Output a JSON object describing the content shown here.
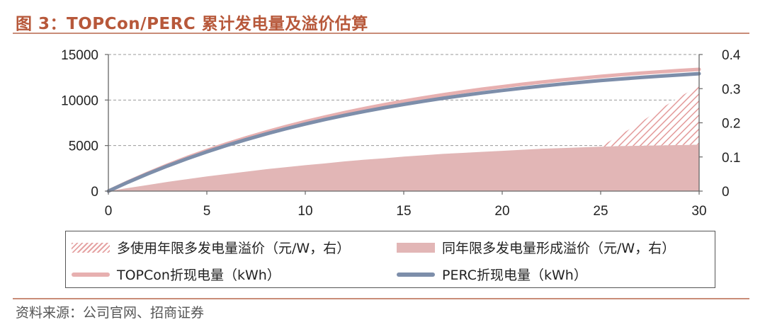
{
  "title": "图 3：TOPCon/PERC 累计发电量及溢价估算",
  "source": "资料来源：公司官网、招商证券",
  "colors": {
    "title": "#b7583a",
    "rule": "#c98c78",
    "topcon": "#e7b0b0",
    "perc": "#7d8eaa",
    "area": "#e2b6b6",
    "hatch": "#e5a3a3"
  },
  "legend": {
    "hatch_label": "多使用年限多发电量溢价（元/W，右）",
    "area_label": "同年限多发电量形成溢价（元/W，右）",
    "topcon_label": "TOPCon折现电量（kWh）",
    "perc_label": "PERC折现电量（kWh）"
  },
  "chart_data": {
    "type": "line+area",
    "xlabel": "",
    "ylabel_left": "",
    "ylabel_right": "",
    "xlim": [
      0,
      30
    ],
    "ylim_left": [
      0,
      15000
    ],
    "ylim_right": [
      0,
      0.4
    ],
    "x_ticks": [
      "0",
      "5",
      "10",
      "15",
      "20",
      "25",
      "30"
    ],
    "y_left_ticks": [
      "0",
      "5000",
      "10000",
      "15000"
    ],
    "y_right_ticks": [
      "0",
      "0.1",
      "0.2",
      "0.3",
      "0.4"
    ],
    "grid": "horizontal dashed",
    "x": [
      0,
      1,
      2,
      3,
      4,
      5,
      6,
      7,
      8,
      9,
      10,
      11,
      12,
      13,
      14,
      15,
      16,
      17,
      18,
      19,
      20,
      21,
      22,
      23,
      24,
      25,
      26,
      27,
      28,
      29,
      30
    ],
    "series": [
      {
        "name": "TOPCon折现电量（kWh）",
        "axis": "left",
        "kind": "line",
        "values": [
          0,
          1020,
          1970,
          2860,
          3690,
          4460,
          5190,
          5860,
          6490,
          7080,
          7630,
          8140,
          8620,
          9070,
          9490,
          9880,
          10240,
          10580,
          10900,
          11200,
          11470,
          11730,
          11970,
          12190,
          12400,
          12600,
          12780,
          12950,
          13100,
          13240,
          13370
        ]
      },
      {
        "name": "PERC折现电量（kWh）",
        "axis": "left",
        "kind": "line",
        "values": [
          0,
          980,
          1900,
          2760,
          3560,
          4310,
          5010,
          5660,
          6270,
          6840,
          7370,
          7860,
          8320,
          8750,
          9150,
          9520,
          9870,
          10200,
          10500,
          10790,
          11050,
          11300,
          11530,
          11750,
          11950,
          12140,
          12310,
          12470,
          12620,
          12760,
          12890
        ]
      },
      {
        "name": "同年限多发电量形成溢价（元/W，右）",
        "axis": "right",
        "kind": "area",
        "values": [
          0,
          0.009,
          0.018,
          0.027,
          0.035,
          0.043,
          0.05,
          0.057,
          0.064,
          0.07,
          0.076,
          0.081,
          0.087,
          0.092,
          0.096,
          0.101,
          0.105,
          0.109,
          0.112,
          0.115,
          0.118,
          0.121,
          0.124,
          0.126,
          0.128,
          0.13,
          0.132,
          0.133,
          0.134,
          0.135,
          0.136
        ]
      },
      {
        "name": "多使用年限多发电量溢价（元/W，右）",
        "axis": "right",
        "kind": "hatched-area",
        "x": [
          25,
          26,
          27,
          28,
          29,
          30
        ],
        "values": [
          0.13,
          0.165,
          0.2,
          0.24,
          0.275,
          0.31
        ]
      }
    ]
  }
}
